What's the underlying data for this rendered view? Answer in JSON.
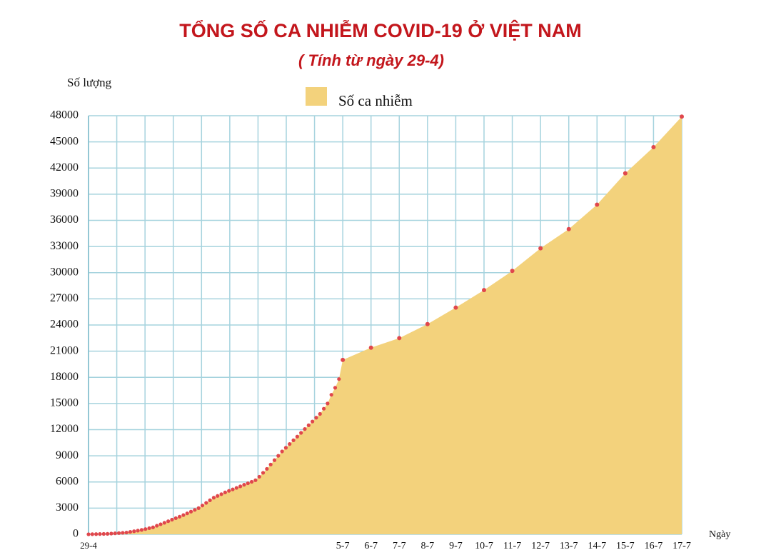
{
  "chart_data": {
    "type": "area",
    "title": "TỔNG SỐ CA NHIỄM COVID-19 Ở VIỆT NAM",
    "subtitle": "( Tính từ ngày 29-4)",
    "y_label": "Số lượng",
    "x_label": "Ngày",
    "categories": [
      "29-4",
      null,
      null,
      null,
      null,
      null,
      null,
      null,
      null,
      null,
      null,
      null,
      null,
      null,
      null,
      null,
      null,
      null,
      null,
      null,
      null,
      null,
      null,
      null,
      null,
      null,
      null,
      null,
      null,
      null,
      null,
      null,
      null,
      null,
      null,
      null,
      null,
      null,
      null,
      null,
      null,
      null,
      null,
      null,
      null,
      null,
      null,
      null,
      null,
      null,
      null,
      null,
      null,
      null,
      null,
      null,
      null,
      null,
      null,
      null,
      null,
      null,
      null,
      null,
      null,
      null,
      null,
      "5-7",
      "6-7",
      "7-7",
      "8-7",
      "9-7",
      "10-7",
      "11-7",
      "12-7",
      "13-7",
      "14-7",
      "15-7",
      "16-7",
      "17-7"
    ],
    "series": [
      {
        "name": "Số ca nhiễm",
        "color": "#f3d27c",
        "marker_color": "#e0474c",
        "values": [
          0,
          10,
          20,
          30,
          40,
          50,
          80,
          110,
          140,
          170,
          200,
          280,
          350,
          420,
          500,
          600,
          700,
          800,
          980,
          1150,
          1320,
          1500,
          1680,
          1850,
          2020,
          2200,
          2400,
          2600,
          2800,
          3000,
          3300,
          3600,
          3900,
          4200,
          4400,
          4600,
          4800,
          4980,
          5150,
          5320,
          5500,
          5680,
          5850,
          6020,
          6200,
          6600,
          7050,
          7500,
          8000,
          8500,
          9000,
          9500,
          9920,
          10350,
          10780,
          11200,
          11630,
          12070,
          12500,
          12930,
          13370,
          13800,
          14400,
          15000,
          16000,
          16800,
          17800,
          20000,
          21400,
          22500,
          24100,
          26000,
          28000,
          30200,
          32800,
          35000,
          37800,
          41400,
          44400,
          47900
        ]
      }
    ],
    "ylim": [
      0,
      48000
    ],
    "yticks": [
      0,
      3000,
      6000,
      9000,
      12000,
      15000,
      18000,
      21000,
      24000,
      27000,
      30000,
      33000,
      36000,
      39000,
      42000,
      45000,
      48000
    ],
    "grid": true,
    "grid_color": "#a6d3de"
  }
}
